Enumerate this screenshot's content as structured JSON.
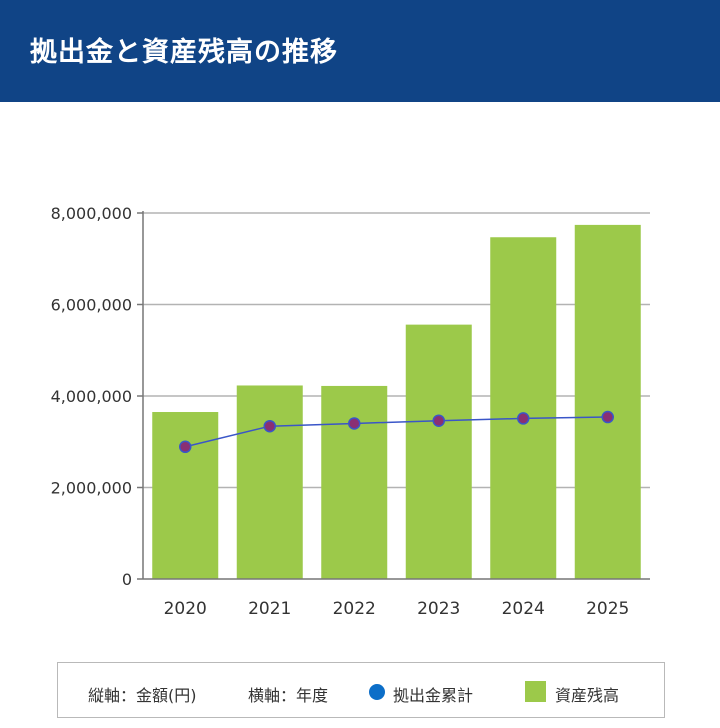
{
  "header": {
    "title": "拠出金と資産残高の推移"
  },
  "legend": {
    "vertical_axis_label": "縦軸：金額(円)",
    "horizontal_axis_label": "横軸：年度",
    "line_series_label": "拠出金累計",
    "bar_series_label": "資産残高"
  },
  "colors": {
    "header_bg": "#104486",
    "bar": "#9cc94a",
    "line": "#3a56c8",
    "point": "#8a2f73",
    "legend_dot": "#0c6ec8"
  },
  "chart_data": {
    "type": "bar",
    "categories": [
      "2020",
      "2021",
      "2022",
      "2023",
      "2024",
      "2025"
    ],
    "series": [
      {
        "name": "資産残高",
        "type": "bar",
        "values": [
          3650000,
          4230000,
          4220000,
          5560000,
          7470000,
          7740000
        ]
      },
      {
        "name": "拠出金累計",
        "type": "line",
        "values": [
          2890000,
          3340000,
          3400000,
          3460000,
          3510000,
          3540000
        ]
      }
    ],
    "ylim": [
      0,
      8000000
    ],
    "yticks": [
      0,
      2000000,
      4000000,
      6000000,
      8000000
    ],
    "ytick_labels": [
      "0",
      "2,000,000",
      "4,000,000",
      "6,000,000",
      "8,000,000"
    ],
    "grid": true
  }
}
